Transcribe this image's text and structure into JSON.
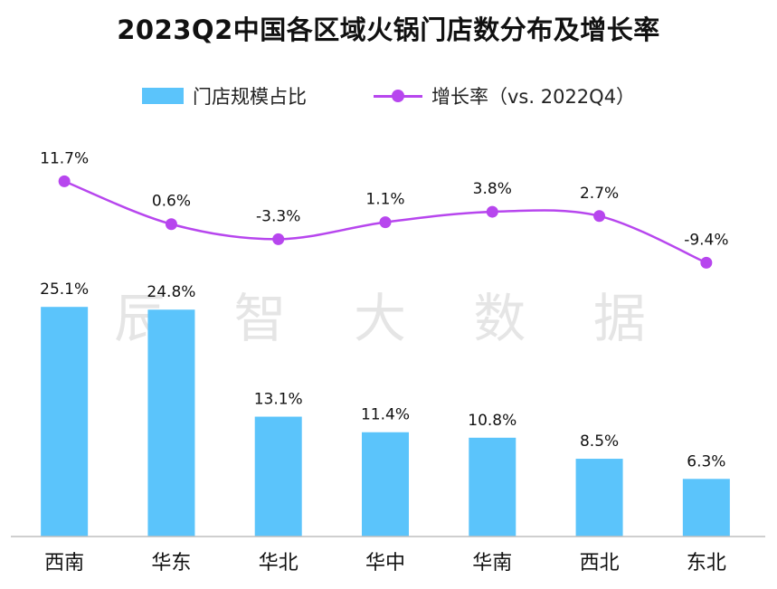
{
  "title": "2023Q2中国各区域火锅门店数分布及增长率",
  "watermark": "辰 智 大 数 据",
  "colors": {
    "bar": "#5bc4fb",
    "line": "#b746ee",
    "text": "#111111",
    "axis": "#bfbfbf"
  },
  "legend": {
    "bar_label": "门店规模占比",
    "line_label": "增长率（vs. 2022Q4）",
    "position": "top-center"
  },
  "chart_data": {
    "type": "bar+line",
    "title": "2023Q2中国各区域火锅门店数分布及增长率",
    "categories": [
      "西南",
      "华东",
      "华北",
      "华中",
      "华南",
      "西北",
      "东北"
    ],
    "series": [
      {
        "name": "门店规模占比",
        "type": "bar",
        "values": [
          25.1,
          24.8,
          13.1,
          11.4,
          10.8,
          8.5,
          6.3
        ],
        "labels": [
          "25.1%",
          "24.8%",
          "13.1%",
          "11.4%",
          "10.8%",
          "8.5%",
          "6.3%"
        ]
      },
      {
        "name": "增长率（vs. 2022Q4）",
        "type": "line",
        "values": [
          11.7,
          0.6,
          -3.3,
          1.1,
          3.8,
          2.7,
          -9.4
        ],
        "labels": [
          "11.7%",
          "0.6%",
          "-3.3%",
          "1.1%",
          "3.8%",
          "2.7%",
          "-9.4%"
        ]
      }
    ],
    "bar_axis_range": [
      0,
      27
    ],
    "line_axis_range": [
      -14,
      20
    ],
    "grid": false
  }
}
